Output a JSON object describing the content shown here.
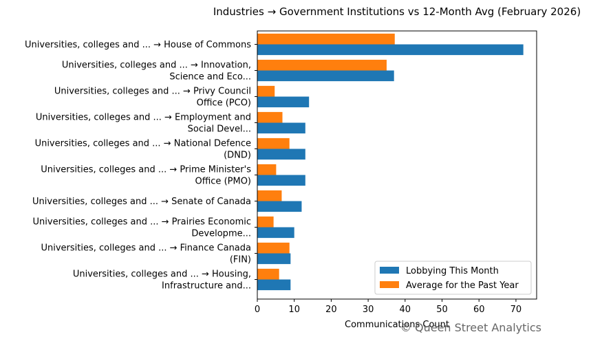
{
  "chart_data": {
    "type": "bar",
    "orientation": "horizontal",
    "title": "Industries → Government Institutions vs 12-Month Avg (February 2026)",
    "xlabel": "Communications Count",
    "ylabel": "",
    "xlim": [
      0,
      75.6
    ],
    "xticks": [
      0,
      10,
      20,
      30,
      40,
      50,
      60,
      70
    ],
    "grid": false,
    "legend_position": "lower right",
    "categories": [
      [
        "Universities, colleges and ... → House of Commons"
      ],
      [
        "Universities, colleges and ... → Innovation,",
        "Science and Eco..."
      ],
      [
        "Universities, colleges and ... → Privy Council",
        "Office (PCO)"
      ],
      [
        "Universities, colleges and ... → Employment and",
        "Social Devel..."
      ],
      [
        "Universities, colleges and ... → National Defence",
        "(DND)"
      ],
      [
        "Universities, colleges and ... → Prime Minister's",
        "Office (PMO)"
      ],
      [
        "Universities, colleges and ... → Senate of Canada"
      ],
      [
        "Universities, colleges and ... → Prairies Economic",
        "Developme..."
      ],
      [
        "Universities, colleges and ... → Finance Canada",
        "(FIN)"
      ],
      [
        "Universities, colleges and ... → Housing,",
        "Infrastructure and..."
      ]
    ],
    "series": [
      {
        "name": "Lobbying This Month",
        "color": "#1f77b4",
        "values": [
          72,
          37,
          14,
          13,
          13,
          13,
          12,
          10,
          9,
          9
        ]
      },
      {
        "name": "Average for the Past Year",
        "color": "#ff7f0e",
        "values": [
          37.2,
          35,
          4.7,
          6.8,
          8.7,
          5.1,
          6.6,
          4.4,
          8.7,
          5.9
        ]
      }
    ]
  },
  "watermark": "© Queen Street Analytics"
}
